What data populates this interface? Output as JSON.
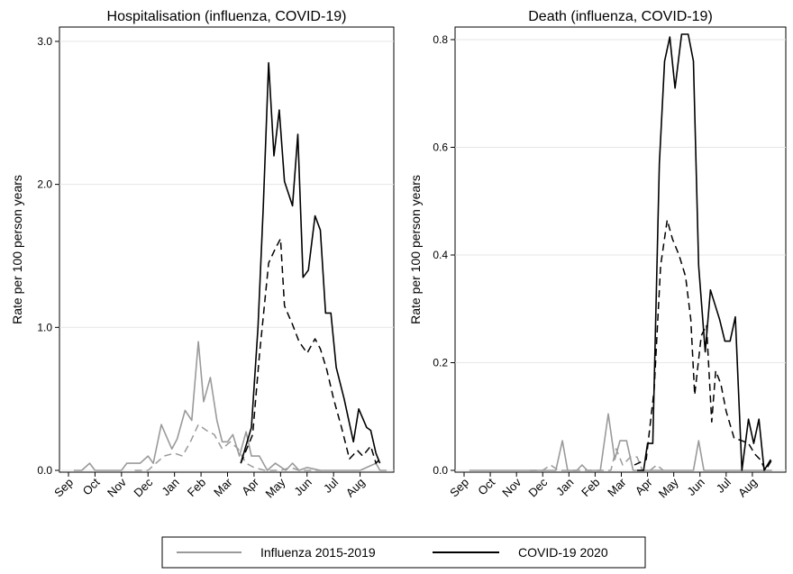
{
  "chart_data": [
    {
      "type": "line",
      "title": "Hospitalisation (influenza, COVID-19)",
      "xlabel": "",
      "ylabel": "Rate per 100 person years",
      "x_ticks": [
        "Sep",
        "Oct",
        "Nov",
        "Dec",
        "Jan",
        "Feb",
        "Mar",
        "Apr",
        "May",
        "Jun",
        "Jul",
        "Aug"
      ],
      "y_ticks": [
        "0.0",
        "1.0",
        "2.0",
        "3.0"
      ],
      "ylim": [
        0,
        3.05
      ],
      "xlim": [
        0,
        12
      ],
      "grid": true,
      "series": [
        {
          "name": "Influenza 2015-2019",
          "style": "solid",
          "color": "#9a9a9a",
          "points": [
            [
              0.2,
              0
            ],
            [
              0.5,
              0
            ],
            [
              0.8,
              0.05
            ],
            [
              1.0,
              0
            ],
            [
              1.5,
              0
            ],
            [
              2.0,
              0
            ],
            [
              2.2,
              0.05
            ],
            [
              2.7,
              0.05
            ],
            [
              3.0,
              0.1
            ],
            [
              3.2,
              0.05
            ],
            [
              3.5,
              0.32
            ],
            [
              3.9,
              0.15
            ],
            [
              4.1,
              0.22
            ],
            [
              4.4,
              0.42
            ],
            [
              4.65,
              0.35
            ],
            [
              4.9,
              0.9
            ],
            [
              5.1,
              0.48
            ],
            [
              5.35,
              0.65
            ],
            [
              5.6,
              0.35
            ],
            [
              5.8,
              0.2
            ],
            [
              6.0,
              0.2
            ],
            [
              6.2,
              0.25
            ],
            [
              6.45,
              0.1
            ],
            [
              6.7,
              0.27
            ],
            [
              6.9,
              0.1
            ],
            [
              7.2,
              0.1
            ],
            [
              7.5,
              0
            ],
            [
              7.8,
              0.05
            ],
            [
              8.2,
              0
            ],
            [
              8.45,
              0.05
            ],
            [
              8.7,
              0
            ],
            [
              9.0,
              0.02
            ],
            [
              9.5,
              0
            ],
            [
              10.0,
              0
            ],
            [
              11.0,
              0
            ],
            [
              11.6,
              0.05
            ],
            [
              11.75,
              0
            ],
            [
              12.0,
              0
            ]
          ]
        },
        {
          "name": "Influenza 2015-2019 (second line)",
          "style": "dashed",
          "color": "#9a9a9a",
          "points": [
            [
              2.5,
              0
            ],
            [
              3.0,
              0
            ],
            [
              3.3,
              0.05
            ],
            [
              3.6,
              0.1
            ],
            [
              4.0,
              0.12
            ],
            [
              4.3,
              0.1
            ],
            [
              4.6,
              0.2
            ],
            [
              4.9,
              0.32
            ],
            [
              5.2,
              0.28
            ],
            [
              5.5,
              0.25
            ],
            [
              5.8,
              0.15
            ],
            [
              6.1,
              0.2
            ],
            [
              6.4,
              0.15
            ],
            [
              6.7,
              0.05
            ],
            [
              7.0,
              0.02
            ],
            [
              7.4,
              0
            ],
            [
              8.0,
              0
            ],
            [
              8.4,
              0.02
            ],
            [
              8.7,
              0
            ],
            [
              9.5,
              0
            ]
          ]
        },
        {
          "name": "COVID-19 2020",
          "style": "solid",
          "color": "#000000",
          "points": [
            [
              6.5,
              0.05
            ],
            [
              6.9,
              0.3
            ],
            [
              7.15,
              1.0
            ],
            [
              7.35,
              1.85
            ],
            [
              7.55,
              2.85
            ],
            [
              7.75,
              2.2
            ],
            [
              7.95,
              2.52
            ],
            [
              8.15,
              2.02
            ],
            [
              8.45,
              1.85
            ],
            [
              8.65,
              2.35
            ],
            [
              8.85,
              1.35
            ],
            [
              9.05,
              1.4
            ],
            [
              9.3,
              1.78
            ],
            [
              9.5,
              1.68
            ],
            [
              9.7,
              1.1
            ],
            [
              9.9,
              1.1
            ],
            [
              10.1,
              0.72
            ],
            [
              10.4,
              0.5
            ],
            [
              10.75,
              0.2
            ],
            [
              10.95,
              0.43
            ],
            [
              11.25,
              0.3
            ],
            [
              11.4,
              0.28
            ],
            [
              11.6,
              0.12
            ],
            [
              11.75,
              0.05
            ]
          ]
        },
        {
          "name": "COVID-19 2020 (second line)",
          "style": "dashed",
          "color": "#000000",
          "points": [
            [
              6.5,
              0.05
            ],
            [
              6.95,
              0.25
            ],
            [
              7.2,
              0.8
            ],
            [
              7.55,
              1.45
            ],
            [
              7.8,
              1.55
            ],
            [
              8.0,
              1.62
            ],
            [
              8.15,
              1.15
            ],
            [
              8.45,
              1.02
            ],
            [
              8.7,
              0.9
            ],
            [
              9.0,
              0.82
            ],
            [
              9.3,
              0.92
            ],
            [
              9.5,
              0.85
            ],
            [
              9.75,
              0.7
            ],
            [
              10.0,
              0.5
            ],
            [
              10.3,
              0.3
            ],
            [
              10.6,
              0.08
            ],
            [
              10.9,
              0.14
            ],
            [
              11.1,
              0.1
            ],
            [
              11.4,
              0.17
            ],
            [
              11.6,
              0.05
            ],
            [
              11.75,
              0.08
            ]
          ]
        }
      ]
    },
    {
      "type": "line",
      "title": "Death (influenza, COVID-19)",
      "xlabel": "",
      "ylabel": "Rate per 100 person years",
      "x_ticks": [
        "Sep",
        "Oct",
        "Nov",
        "Dec",
        "Jan",
        "Feb",
        "Mar",
        "Apr",
        "May",
        "Jun",
        "Jul",
        "Aug"
      ],
      "y_ticks": [
        "0.0",
        "0.2",
        "0.4",
        "0.6",
        "0.8"
      ],
      "ylim": [
        0,
        0.81
      ],
      "xlim": [
        0,
        12
      ],
      "grid": true,
      "series": [
        {
          "name": "Influenza 2015-2019",
          "style": "solid",
          "color": "#9a9a9a",
          "points": [
            [
              0.2,
              0
            ],
            [
              1.0,
              0
            ],
            [
              2.0,
              0
            ],
            [
              3.0,
              0
            ],
            [
              3.5,
              0
            ],
            [
              3.75,
              0.055
            ],
            [
              3.95,
              0
            ],
            [
              4.3,
              0
            ],
            [
              4.5,
              0.01
            ],
            [
              4.7,
              0
            ],
            [
              5.2,
              0
            ],
            [
              5.5,
              0.105
            ],
            [
              5.75,
              0.02
            ],
            [
              5.95,
              0.055
            ],
            [
              6.2,
              0.055
            ],
            [
              6.45,
              0
            ],
            [
              7.0,
              0
            ],
            [
              7.5,
              0
            ],
            [
              8.0,
              0
            ],
            [
              8.75,
              0
            ],
            [
              8.95,
              0.055
            ],
            [
              9.15,
              0
            ],
            [
              10.0,
              0
            ],
            [
              11.0,
              0
            ],
            [
              11.75,
              0
            ]
          ]
        },
        {
          "name": "Influenza 2015-2019 (second line)",
          "style": "dashed",
          "color": "#9a9a9a",
          "points": [
            [
              2.5,
              0
            ],
            [
              3.0,
              0
            ],
            [
              3.3,
              0.01
            ],
            [
              3.6,
              0
            ],
            [
              4.0,
              0
            ],
            [
              5.6,
              0
            ],
            [
              5.8,
              0.04
            ],
            [
              6.05,
              0.01
            ],
            [
              6.35,
              0.025
            ],
            [
              6.6,
              0.025
            ],
            [
              6.8,
              0
            ],
            [
              7.1,
              0
            ],
            [
              7.35,
              0.01
            ],
            [
              7.6,
              0
            ]
          ]
        },
        {
          "name": "COVID-19 2020",
          "style": "solid",
          "color": "#000000",
          "points": [
            [
              6.6,
              0
            ],
            [
              6.85,
              0
            ],
            [
              7.0,
              0.05
            ],
            [
              7.2,
              0.05
            ],
            [
              7.45,
              0.57
            ],
            [
              7.65,
              0.76
            ],
            [
              7.85,
              0.805
            ],
            [
              8.05,
              0.71
            ],
            [
              8.3,
              0.81
            ],
            [
              8.55,
              0.81
            ],
            [
              8.75,
              0.76
            ],
            [
              8.95,
              0.38
            ],
            [
              9.2,
              0.22
            ],
            [
              9.4,
              0.335
            ],
            [
              9.75,
              0.28
            ],
            [
              9.95,
              0.24
            ],
            [
              10.15,
              0.24
            ],
            [
              10.35,
              0.285
            ],
            [
              10.6,
              0
            ],
            [
              10.85,
              0.095
            ],
            [
              11.05,
              0.05
            ],
            [
              11.25,
              0.095
            ],
            [
              11.45,
              0
            ],
            [
              11.7,
              0.02
            ]
          ]
        },
        {
          "name": "COVID-19 2020 (second line)",
          "style": "dashed",
          "color": "#000000",
          "points": [
            [
              6.5,
              0.01
            ],
            [
              6.95,
              0.02
            ],
            [
              7.25,
              0.15
            ],
            [
              7.5,
              0.38
            ],
            [
              7.75,
              0.465
            ],
            [
              7.95,
              0.43
            ],
            [
              8.2,
              0.4
            ],
            [
              8.45,
              0.36
            ],
            [
              8.65,
              0.28
            ],
            [
              8.8,
              0.14
            ],
            [
              9.05,
              0.25
            ],
            [
              9.25,
              0.27
            ],
            [
              9.45,
              0.09
            ],
            [
              9.6,
              0.185
            ],
            [
              9.8,
              0.16
            ],
            [
              10.0,
              0.11
            ],
            [
              10.3,
              0.06
            ],
            [
              10.6,
              0.055
            ],
            [
              10.85,
              0.05
            ],
            [
              11.1,
              0.03
            ],
            [
              11.3,
              0.02
            ],
            [
              11.5,
              0
            ],
            [
              11.75,
              0.02
            ]
          ]
        }
      ]
    }
  ],
  "legend": {
    "placement": "bottom",
    "entries": [
      {
        "label": "Influenza 2015-2019",
        "color": "#9a9a9a"
      },
      {
        "label": "COVID-19 2020",
        "color": "#000000"
      }
    ]
  }
}
